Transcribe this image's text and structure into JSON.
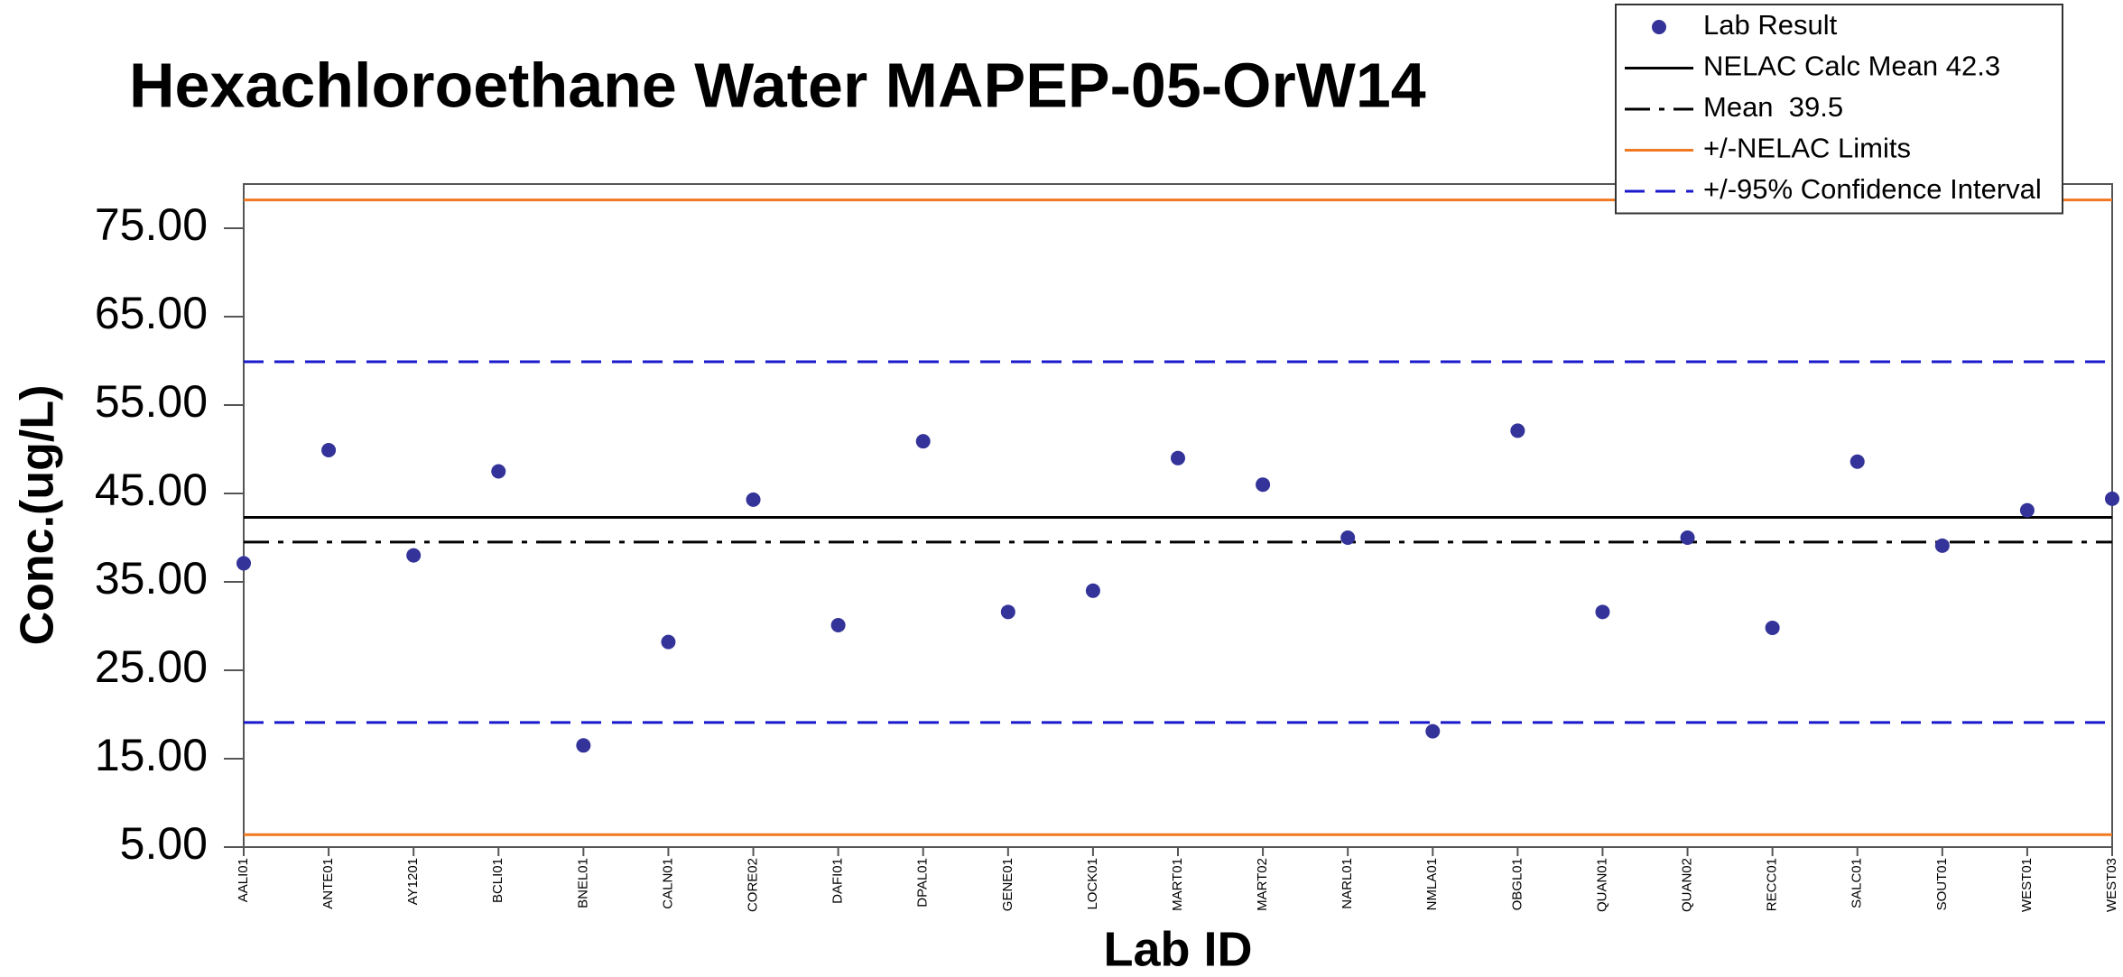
{
  "chart_data": {
    "type": "scatter",
    "title": "Hexachloroethane Water MAPEP-05-OrW14",
    "x_label": "Lab ID",
    "y_label": "Conc.(ug/L)",
    "categories": [
      "AALI01",
      "ANTE01",
      "AY1201",
      "BCLI01",
      "BNEL01",
      "CALN01",
      "CORE02",
      "DAFI01",
      "DPAL01",
      "GENE01",
      "LOCK01",
      "MART01",
      "MART02",
      "NARL01",
      "NMLA01",
      "OBGL01",
      "QUAN01",
      "QUAN02",
      "RECC01",
      "SALC01",
      "SOUT01",
      "WEST01",
      "WEST03"
    ],
    "series": [
      {
        "name": "Lab Result",
        "color": "#333399",
        "values": [
          37.1,
          49.9,
          38.0,
          47.5,
          16.5,
          28.2,
          44.3,
          30.1,
          50.9,
          31.6,
          34.0,
          49.0,
          46.0,
          40.0,
          18.1,
          52.1,
          31.6,
          40.0,
          29.8,
          48.6,
          39.1,
          43.1,
          44.4
        ]
      }
    ],
    "reference_lines": [
      {
        "name": "NELAC Calc Mean 42.3",
        "color": "#000000",
        "dash": "solid",
        "values": [
          42.3
        ]
      },
      {
        "name": "Mean  39.5",
        "color": "#000000",
        "dash": "dashdot",
        "values": [
          39.5
        ]
      },
      {
        "name": "+/-NELAC Limits",
        "color": "#f07820",
        "dash": "solid",
        "values": [
          6.4,
          78.2
        ]
      },
      {
        "name": "+/-95% Confidence Interval",
        "color": "#1a1acc",
        "dash": "dashed",
        "values": [
          19.1,
          59.9
        ]
      }
    ],
    "ylim": [
      5,
      80
    ],
    "yticks": [
      {
        "value": 5,
        "label": "5.00"
      },
      {
        "value": 15,
        "label": "15.00"
      },
      {
        "value": 25,
        "label": "25.00"
      },
      {
        "value": 35,
        "label": "35.00"
      },
      {
        "value": 45,
        "label": "45.00"
      },
      {
        "value": 55,
        "label": "55.00"
      },
      {
        "value": 65,
        "label": "65.00"
      },
      {
        "value": 75,
        "label": "75.00"
      }
    ],
    "grid": false,
    "legend": "top-right"
  }
}
